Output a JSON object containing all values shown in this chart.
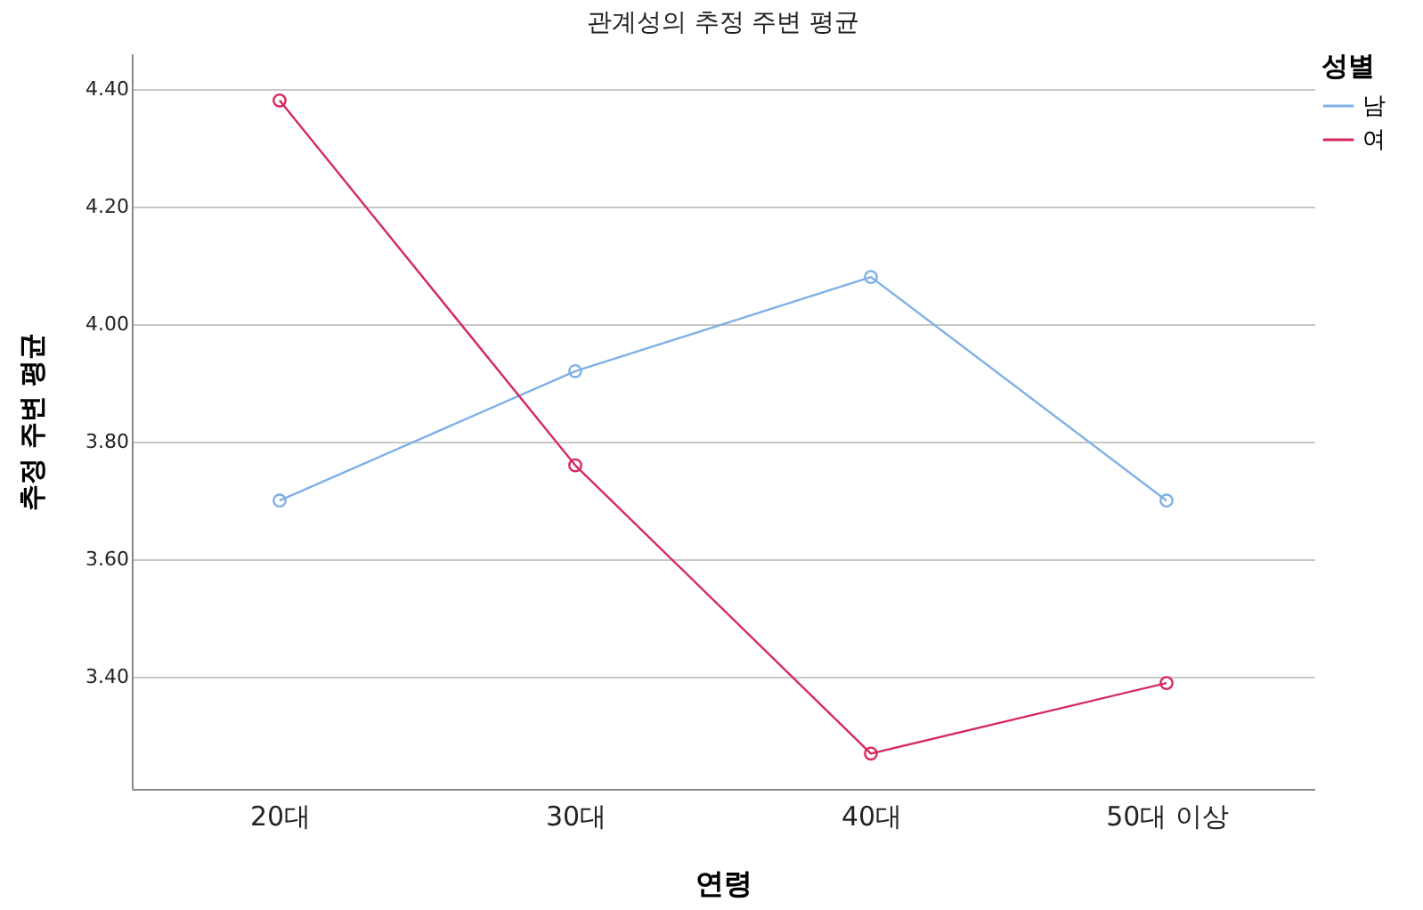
{
  "chart_data": {
    "type": "line",
    "title": "관계성의 추정 주변 평균",
    "xlabel": "연령",
    "ylabel": "추정 주변 평균",
    "legend_title": "성별",
    "categories": [
      "20대",
      "30대",
      "40대",
      "50대 이상"
    ],
    "series": [
      {
        "name": "남",
        "color": "#7fb0e6",
        "values": [
          3.7,
          3.92,
          4.08,
          3.7
        ]
      },
      {
        "name": "여",
        "color": "#d62a5e",
        "values": [
          4.38,
          3.76,
          3.27,
          3.39
        ]
      }
    ],
    "ylim": [
      3.21,
      4.46
    ],
    "yticks": [
      {
        "value": 3.4,
        "label": "3.40"
      },
      {
        "value": 3.6,
        "label": "3.60"
      },
      {
        "value": 3.8,
        "label": "3.80"
      },
      {
        "value": 4.0,
        "label": "4.00"
      },
      {
        "value": 4.2,
        "label": "4.20"
      },
      {
        "value": 4.4,
        "label": "4.40"
      }
    ],
    "grid": "y",
    "legend": "top right",
    "marker": "circle",
    "line_style": "solid"
  }
}
